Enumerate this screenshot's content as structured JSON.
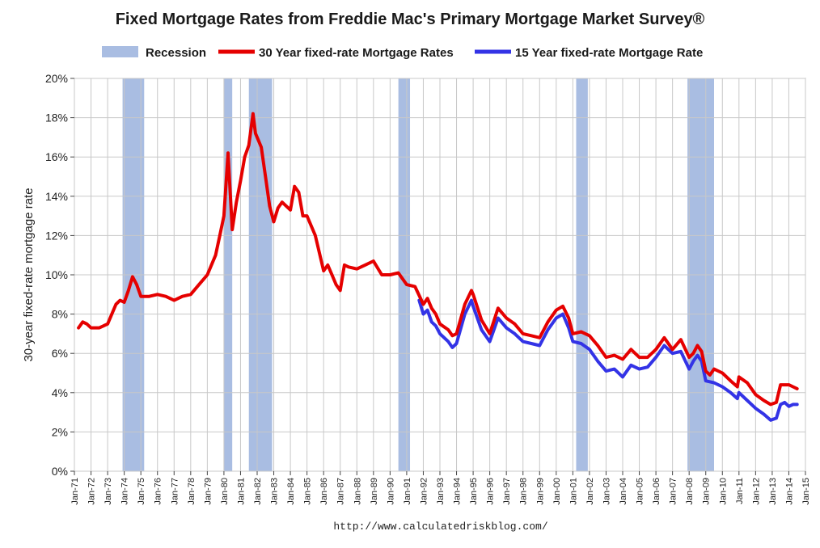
{
  "chart_data": {
    "type": "line",
    "title": "Fixed Mortgage Rates from Freddie Mac's Primary Mortgage Market Survey®",
    "ylabel": "30-year fixed-rate mortgage rate",
    "xlabel": "",
    "source": "http://www.calculatedriskblog.com/",
    "ylim": [
      0,
      20
    ],
    "yticks": [
      "0%",
      "2%",
      "4%",
      "6%",
      "8%",
      "10%",
      "12%",
      "14%",
      "16%",
      "18%",
      "20%"
    ],
    "xlim": [
      1971.0,
      2015.0
    ],
    "xticks": [
      "Jan-71",
      "Jan-72",
      "Jan-73",
      "Jan-74",
      "Jan-75",
      "Jan-76",
      "Jan-77",
      "Jan-78",
      "Jan-79",
      "Jan-80",
      "Jan-81",
      "Jan-82",
      "Jan-83",
      "Jan-84",
      "Jan-85",
      "Jan-86",
      "Jan-87",
      "Jan-88",
      "Jan-89",
      "Jan-90",
      "Jan-91",
      "Jan-92",
      "Jan-93",
      "Jan-94",
      "Jan-95",
      "Jan-96",
      "Jan-97",
      "Jan-98",
      "Jan-99",
      "Jan-00",
      "Jan-01",
      "Jan-02",
      "Jan-03",
      "Jan-04",
      "Jan-05",
      "Jan-06",
      "Jan-07",
      "Jan-08",
      "Jan-09",
      "Jan-10",
      "Jan-11",
      "Jan-12",
      "Jan-13",
      "Jan-14",
      "Jan-15"
    ],
    "grid": true,
    "legend_position": "top",
    "legend": [
      {
        "name": "Recession",
        "kind": "band",
        "color": "#a9bde2"
      },
      {
        "name": "30 Year fixed-rate Mortgage Rates",
        "kind": "line",
        "color": "#e50000"
      },
      {
        "name": "15 Year fixed-rate Mortgage Rate",
        "kind": "line",
        "color": "#3333e6"
      }
    ],
    "recessions": [
      [
        1973.9,
        1975.2
      ],
      [
        1980.0,
        1980.5
      ],
      [
        1981.5,
        1982.9
      ],
      [
        1990.5,
        1991.2
      ],
      [
        2001.2,
        2001.9
      ],
      [
        2007.9,
        2009.5
      ]
    ],
    "series": [
      {
        "name": "30 Year fixed-rate Mortgage Rates",
        "color": "#e50000",
        "x": [
          1971.25,
          1971.5,
          1971.75,
          1972.0,
          1972.5,
          1973.0,
          1973.5,
          1973.75,
          1974.0,
          1974.25,
          1974.5,
          1974.75,
          1975.0,
          1975.5,
          1976.0,
          1976.5,
          1977.0,
          1977.5,
          1978.0,
          1978.5,
          1979.0,
          1979.5,
          1979.75,
          1980.0,
          1980.25,
          1980.5,
          1980.75,
          1981.0,
          1981.25,
          1981.5,
          1981.75,
          1981.9,
          1982.0,
          1982.25,
          1982.5,
          1982.75,
          1983.0,
          1983.25,
          1983.5,
          1984.0,
          1984.25,
          1984.5,
          1984.75,
          1985.0,
          1985.5,
          1986.0,
          1986.25,
          1986.5,
          1986.75,
          1987.0,
          1987.25,
          1987.5,
          1988.0,
          1988.5,
          1989.0,
          1989.5,
          1990.0,
          1990.5,
          1991.0,
          1991.5,
          1992.0,
          1992.25,
          1992.5,
          1992.75,
          1993.0,
          1993.5,
          1993.75,
          1994.0,
          1994.5,
          1994.9,
          1995.0,
          1995.5,
          1996.0,
          1996.5,
          1997.0,
          1997.5,
          1998.0,
          1998.5,
          1999.0,
          1999.5,
          2000.0,
          2000.4,
          2000.75,
          2001.0,
          2001.5,
          2002.0,
          2002.5,
          2003.0,
          2003.5,
          2004.0,
          2004.5,
          2005.0,
          2005.5,
          2006.0,
          2006.5,
          2007.0,
          2007.5,
          2008.0,
          2008.25,
          2008.5,
          2008.75,
          2009.0,
          2009.25,
          2009.5,
          2010.0,
          2010.5,
          2010.9,
          2011.0,
          2011.5,
          2012.0,
          2012.5,
          2012.9,
          2013.25,
          2013.5,
          2013.75,
          2014.0,
          2014.25,
          2014.5
        ],
        "values": [
          7.3,
          7.6,
          7.5,
          7.3,
          7.3,
          7.5,
          8.5,
          8.7,
          8.6,
          9.2,
          9.9,
          9.5,
          8.9,
          8.9,
          9.0,
          8.9,
          8.7,
          8.9,
          9.0,
          9.5,
          10.0,
          11.0,
          12.0,
          13.0,
          16.2,
          12.3,
          13.7,
          14.8,
          16.0,
          16.6,
          18.2,
          17.2,
          17.0,
          16.5,
          15.0,
          13.5,
          12.7,
          13.4,
          13.7,
          13.3,
          14.5,
          14.2,
          13.0,
          13.0,
          12.0,
          10.2,
          10.5,
          10.0,
          9.5,
          9.2,
          10.5,
          10.4,
          10.3,
          10.5,
          10.7,
          10.0,
          10.0,
          10.1,
          9.5,
          9.4,
          8.5,
          8.8,
          8.3,
          8.0,
          7.5,
          7.2,
          6.9,
          7.0,
          8.5,
          9.2,
          9.0,
          7.7,
          7.0,
          8.3,
          7.8,
          7.5,
          7.0,
          6.9,
          6.8,
          7.6,
          8.2,
          8.4,
          7.8,
          7.0,
          7.1,
          6.9,
          6.4,
          5.8,
          5.9,
          5.7,
          6.2,
          5.8,
          5.8,
          6.2,
          6.8,
          6.2,
          6.7,
          5.8,
          6.0,
          6.4,
          6.1,
          5.1,
          4.9,
          5.2,
          5.0,
          4.6,
          4.3,
          4.8,
          4.5,
          3.9,
          3.6,
          3.4,
          3.5,
          4.4,
          4.4,
          4.4,
          4.3,
          4.2
        ]
      },
      {
        "name": "15 Year fixed-rate Mortgage Rate",
        "color": "#3333e6",
        "x": [
          1991.75,
          1992.0,
          1992.25,
          1992.5,
          1992.75,
          1993.0,
          1993.5,
          1993.75,
          1994.0,
          1994.5,
          1994.9,
          1995.0,
          1995.5,
          1996.0,
          1996.5,
          1997.0,
          1997.5,
          1998.0,
          1998.5,
          1999.0,
          1999.5,
          2000.0,
          2000.4,
          2000.75,
          2001.0,
          2001.5,
          2002.0,
          2002.5,
          2003.0,
          2003.5,
          2004.0,
          2004.5,
          2005.0,
          2005.5,
          2006.0,
          2006.5,
          2007.0,
          2007.5,
          2008.0,
          2008.25,
          2008.5,
          2008.75,
          2009.0,
          2009.5,
          2010.0,
          2010.5,
          2010.9,
          2011.0,
          2011.5,
          2012.0,
          2012.5,
          2012.9,
          2013.25,
          2013.5,
          2013.75,
          2014.0,
          2014.25,
          2014.5
        ],
        "values": [
          8.7,
          8.0,
          8.2,
          7.6,
          7.4,
          7.0,
          6.6,
          6.3,
          6.5,
          8.0,
          8.7,
          8.4,
          7.2,
          6.6,
          7.8,
          7.3,
          7.0,
          6.6,
          6.5,
          6.4,
          7.2,
          7.8,
          8.0,
          7.3,
          6.6,
          6.5,
          6.2,
          5.6,
          5.1,
          5.2,
          4.8,
          5.4,
          5.2,
          5.3,
          5.8,
          6.4,
          6.0,
          6.1,
          5.2,
          5.6,
          5.9,
          5.6,
          4.6,
          4.5,
          4.3,
          4.0,
          3.7,
          4.0,
          3.6,
          3.2,
          2.9,
          2.6,
          2.7,
          3.4,
          3.5,
          3.3,
          3.4,
          3.4
        ]
      }
    ]
  }
}
